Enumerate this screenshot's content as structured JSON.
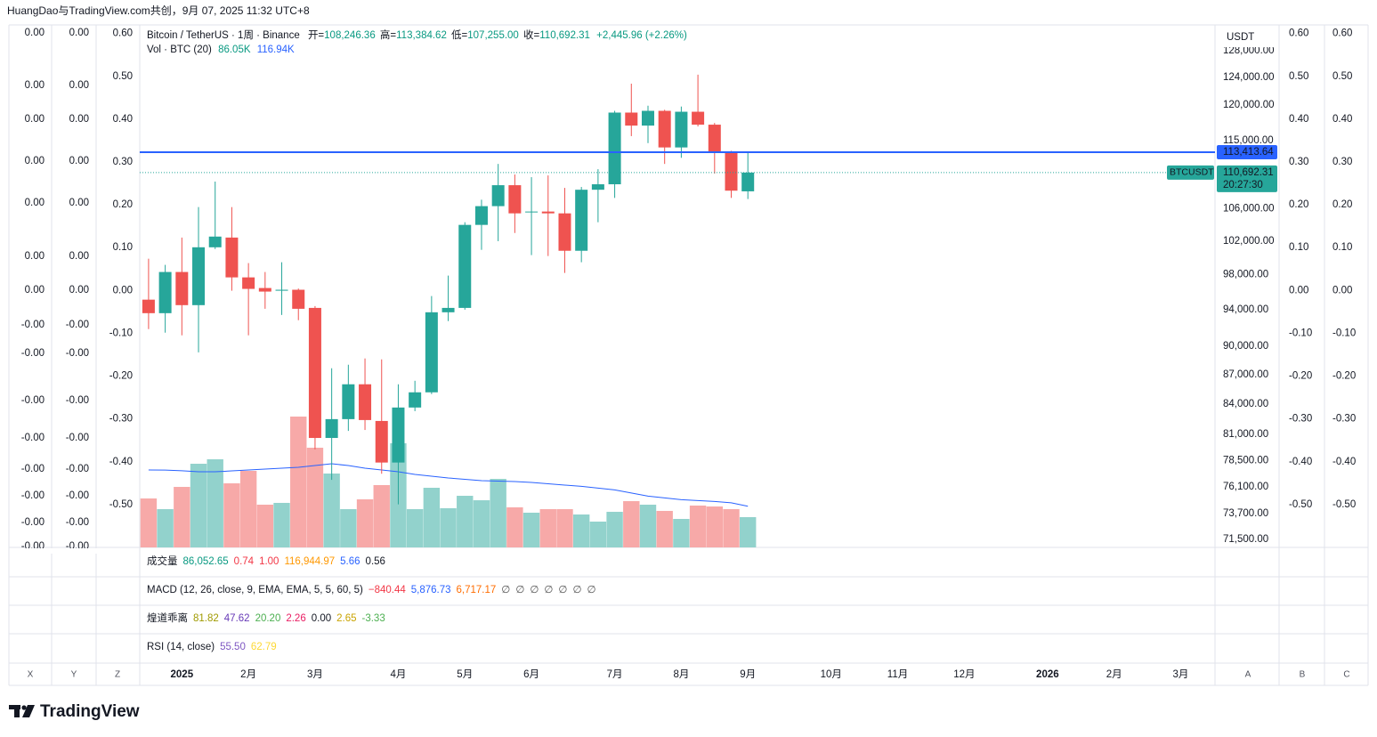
{
  "header": "HuangDao与TradingView.com共创，9月 07, 2025 11:32 UTC+8",
  "chart_data": {
    "type": "candlestick",
    "title": "Bitcoin / TetherUS · 1周 · Binance",
    "legend": {
      "open_label": "开=",
      "open": "108,246.36",
      "high_label": "高=",
      "high": "113,384.62",
      "low_label": "低=",
      "low": "107,255.00",
      "close_label": "收=",
      "close": "110,692.31",
      "change": "+2,445.96 (+2.26%)"
    },
    "up_color": "#26a69a",
    "down_color": "#ef5350",
    "log_scale": true,
    "grid": false,
    "ylim": [
      70800,
      132000
    ],
    "yticks": [
      {
        "value": 128000,
        "label": "128,000.00"
      },
      {
        "value": 124000,
        "label": "124,000.00"
      },
      {
        "value": 120000,
        "label": "120,000.00"
      },
      {
        "value": 115000,
        "label": "115,000.00"
      },
      {
        "value": 106000,
        "label": "106,000.00"
      },
      {
        "value": 102000,
        "label": "102,000.00"
      },
      {
        "value": 98000,
        "label": "98,000.00"
      },
      {
        "value": 94000,
        "label": "94,000.00"
      },
      {
        "value": 90000,
        "label": "90,000.00"
      },
      {
        "value": 87000,
        "label": "87,000.00"
      },
      {
        "value": 84000,
        "label": "84,000.00"
      },
      {
        "value": 81000,
        "label": "81,000.00"
      },
      {
        "value": 78500,
        "label": "78,500.00"
      },
      {
        "value": 76100,
        "label": "76,100.00"
      },
      {
        "value": 73700,
        "label": "73,700.00"
      },
      {
        "value": 71500,
        "label": "71,500.00"
      }
    ],
    "y_unit": "USDT",
    "y2lim": [
      -0.6,
      0.62
    ],
    "y2ticks": [
      {
        "value": 0.6,
        "label": "0.60"
      },
      {
        "value": 0.5,
        "label": "0.50"
      },
      {
        "value": 0.4,
        "label": "0.40"
      },
      {
        "value": 0.3,
        "label": "0.30"
      },
      {
        "value": 0.2,
        "label": "0.20"
      },
      {
        "value": 0.1,
        "label": "0.10"
      },
      {
        "value": 0,
        "label": "0.00"
      },
      {
        "value": -0.1,
        "label": "-0.10"
      },
      {
        "value": -0.2,
        "label": "-0.20"
      },
      {
        "value": -0.3,
        "label": "-0.30"
      },
      {
        "value": -0.4,
        "label": "-0.40"
      },
      {
        "value": -0.5,
        "label": "-0.50"
      }
    ],
    "left_scale_labels": [
      "0.00",
      "0.00",
      "0.00",
      "0.00",
      "0.00",
      "0.00",
      "0.00",
      "-0.00",
      "-0.00",
      "-0.00",
      "-0.00",
      "-0.00",
      "-0.00",
      "-0.00",
      "-0.00"
    ],
    "xlim": [
      -0.53,
      64.06
    ],
    "xticks": [
      {
        "value": 2,
        "label": "2025"
      },
      {
        "value": 6,
        "label": "2月"
      },
      {
        "value": 10,
        "label": "3月"
      },
      {
        "value": 15,
        "label": "4月"
      },
      {
        "value": 19,
        "label": "5月"
      },
      {
        "value": 23,
        "label": "6月"
      },
      {
        "value": 28,
        "label": "7月"
      },
      {
        "value": 32,
        "label": "8月"
      },
      {
        "value": 36,
        "label": "9月"
      },
      {
        "value": 41,
        "label": "10月"
      },
      {
        "value": 45,
        "label": "11月"
      },
      {
        "value": 49,
        "label": "12月"
      },
      {
        "value": 54,
        "label": "2026"
      },
      {
        "value": 58,
        "label": "2月"
      },
      {
        "value": 62,
        "label": "3月"
      }
    ],
    "open": [
      95130,
      93610,
      98320,
      94510,
      101260,
      102440,
      97690,
      96460,
      96150,
      96260,
      94200,
      80670,
      82500,
      86000,
      82320,
      78340,
      83650,
      85180,
      93710,
      94200,
      104000,
      106350,
      109040,
      105560,
      105670,
      105440,
      100840,
      108450,
      109160,
      118900,
      117070,
      119150,
      114060,
      119020,
      117200,
      113480,
      108246.36
    ],
    "high": [
      99890,
      99160,
      102440,
      106230,
      109510,
      106230,
      99370,
      98320,
      99470,
      96400,
      94410,
      87660,
      88030,
      88690,
      88590,
      86000,
      86360,
      95540,
      97900,
      104330,
      107170,
      111840,
      110440,
      110090,
      110320,
      108690,
      108810,
      111140,
      119150,
      123070,
      119880,
      119300,
      119760,
      124400,
      117440,
      113600,
      113384.62
    ],
    "low": [
      91850,
      91460,
      91170,
      89340,
      101050,
      96150,
      91170,
      94100,
      93410,
      92830,
      79580,
      76740,
      81350,
      81440,
      77300,
      74530,
      83290,
      85000,
      92730,
      94000,
      100950,
      102000,
      103000,
      100320,
      100210,
      98210,
      99470,
      104330,
      107400,
      115610,
      114650,
      111840,
      112660,
      116950,
      110560,
      107400,
      107255
    ],
    "close": [
      93610,
      98320,
      94510,
      101260,
      102560,
      97690,
      96360,
      96050,
      96260,
      94100,
      80670,
      82500,
      86000,
      82410,
      78340,
      83650,
      85180,
      93710,
      94200,
      104000,
      106350,
      109040,
      105440,
      105670,
      105440,
      100840,
      108450,
      109160,
      118900,
      117070,
      119150,
      114060,
      119020,
      117200,
      113480,
      108330,
      110692.31
    ],
    "last_label": "110,692.31",
    "symbol_label": "BTCUSDT",
    "countdown": "20:27:30",
    "hline": {
      "value": 113413.64,
      "label": "113,413.64",
      "color": "#2962ff"
    },
    "volume": {
      "name": "Vol · BTC (20)",
      "last": "86.05K",
      "ma_last": "116.94K",
      "up_color": "#92d2cc",
      "down_color": "#f7a9a8",
      "ma_color": "#2962ff",
      "values": [
        139200,
        108800,
        172100,
        237900,
        250600,
        182200,
        217700,
        121500,
        126600,
        372100,
        283500,
        210100,
        108800,
        136700,
        177200,
        296100,
        108800,
        169600,
        111400,
        146800,
        134100,
        194900,
        113900,
        98700,
        108800,
        108800,
        93600,
        73400,
        101200,
        131600,
        121500,
        103800,
        81000,
        119000,
        116400,
        108800,
        86052.65
      ],
      "ma": [
        220200,
        220000,
        218000,
        215100,
        215100,
        217600,
        220200,
        222700,
        225200,
        227700,
        232800,
        237800,
        232800,
        225200,
        220200,
        215100,
        207600,
        202500,
        197500,
        193700,
        189900,
        188700,
        187400,
        184900,
        181100,
        177300,
        173600,
        168500,
        163500,
        154600,
        145800,
        140800,
        135700,
        133200,
        130700,
        126900,
        116944.97
      ]
    }
  },
  "panes": [
    {
      "title": "成交量",
      "values": [
        "86,052.65",
        "0.74",
        "1.00",
        "116,944.97",
        "5.66",
        "0.56"
      ]
    },
    {
      "title": "MACD (12, 26, close, 9, EMA, EMA, 5, 5, 60, 5)",
      "values": [
        "−840.44",
        "5,876.73",
        "6,717.17",
        "∅",
        "∅",
        "∅",
        "∅",
        "∅",
        "∅",
        "∅"
      ]
    },
    {
      "title": "煌道乖离",
      "values": [
        "81.82",
        "47.62",
        "20.20",
        "2.26",
        "0.00",
        "2.65",
        "-3.33"
      ]
    },
    {
      "title": "RSI (14, close)",
      "values": [
        "55.50",
        "62.79"
      ]
    }
  ],
  "corner_labels": [
    "X",
    "Y",
    "Z",
    "A",
    "B",
    "C"
  ],
  "logo": "TradingView"
}
